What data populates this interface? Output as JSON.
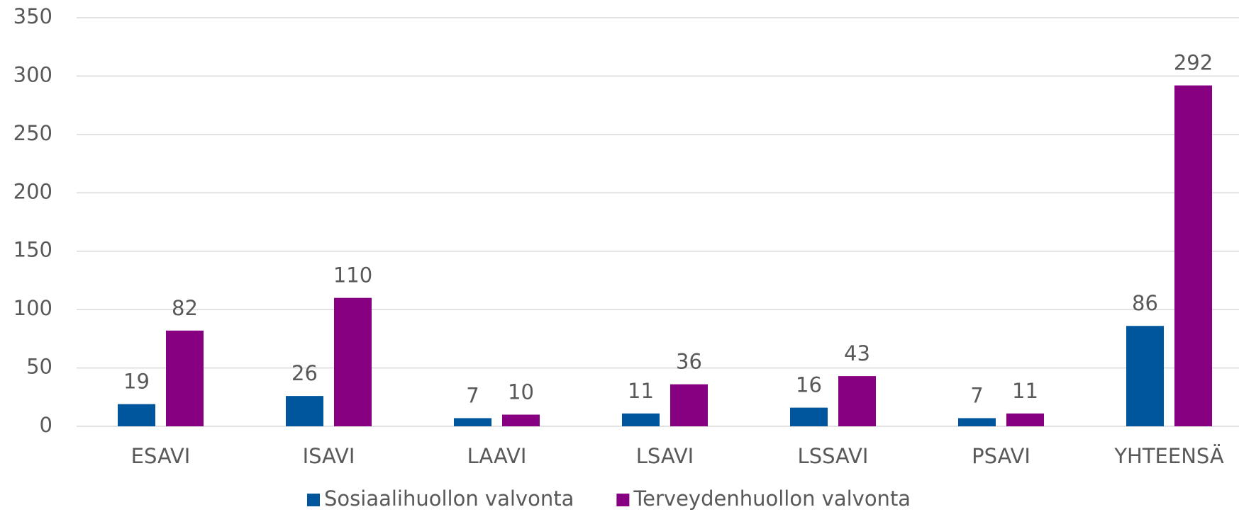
{
  "chart_data": {
    "type": "bar",
    "categories": [
      "ESAVI",
      "ISAVI",
      "LAAVI",
      "LSAVI",
      "LSSAVI",
      "PSAVI",
      "YHTEENSÄ"
    ],
    "series": [
      {
        "name": "Sosiaalihuollon valvonta",
        "color": "#00569d",
        "values": [
          19,
          26,
          7,
          11,
          16,
          7,
          86
        ]
      },
      {
        "name": "Terveydenhuollon valvonta",
        "color": "#870082",
        "values": [
          82,
          110,
          10,
          36,
          43,
          11,
          292
        ]
      }
    ],
    "ylim": [
      0,
      350
    ],
    "yticks": [
      0,
      50,
      100,
      150,
      200,
      250,
      300,
      350
    ],
    "grid": true,
    "legend": "bottom"
  }
}
